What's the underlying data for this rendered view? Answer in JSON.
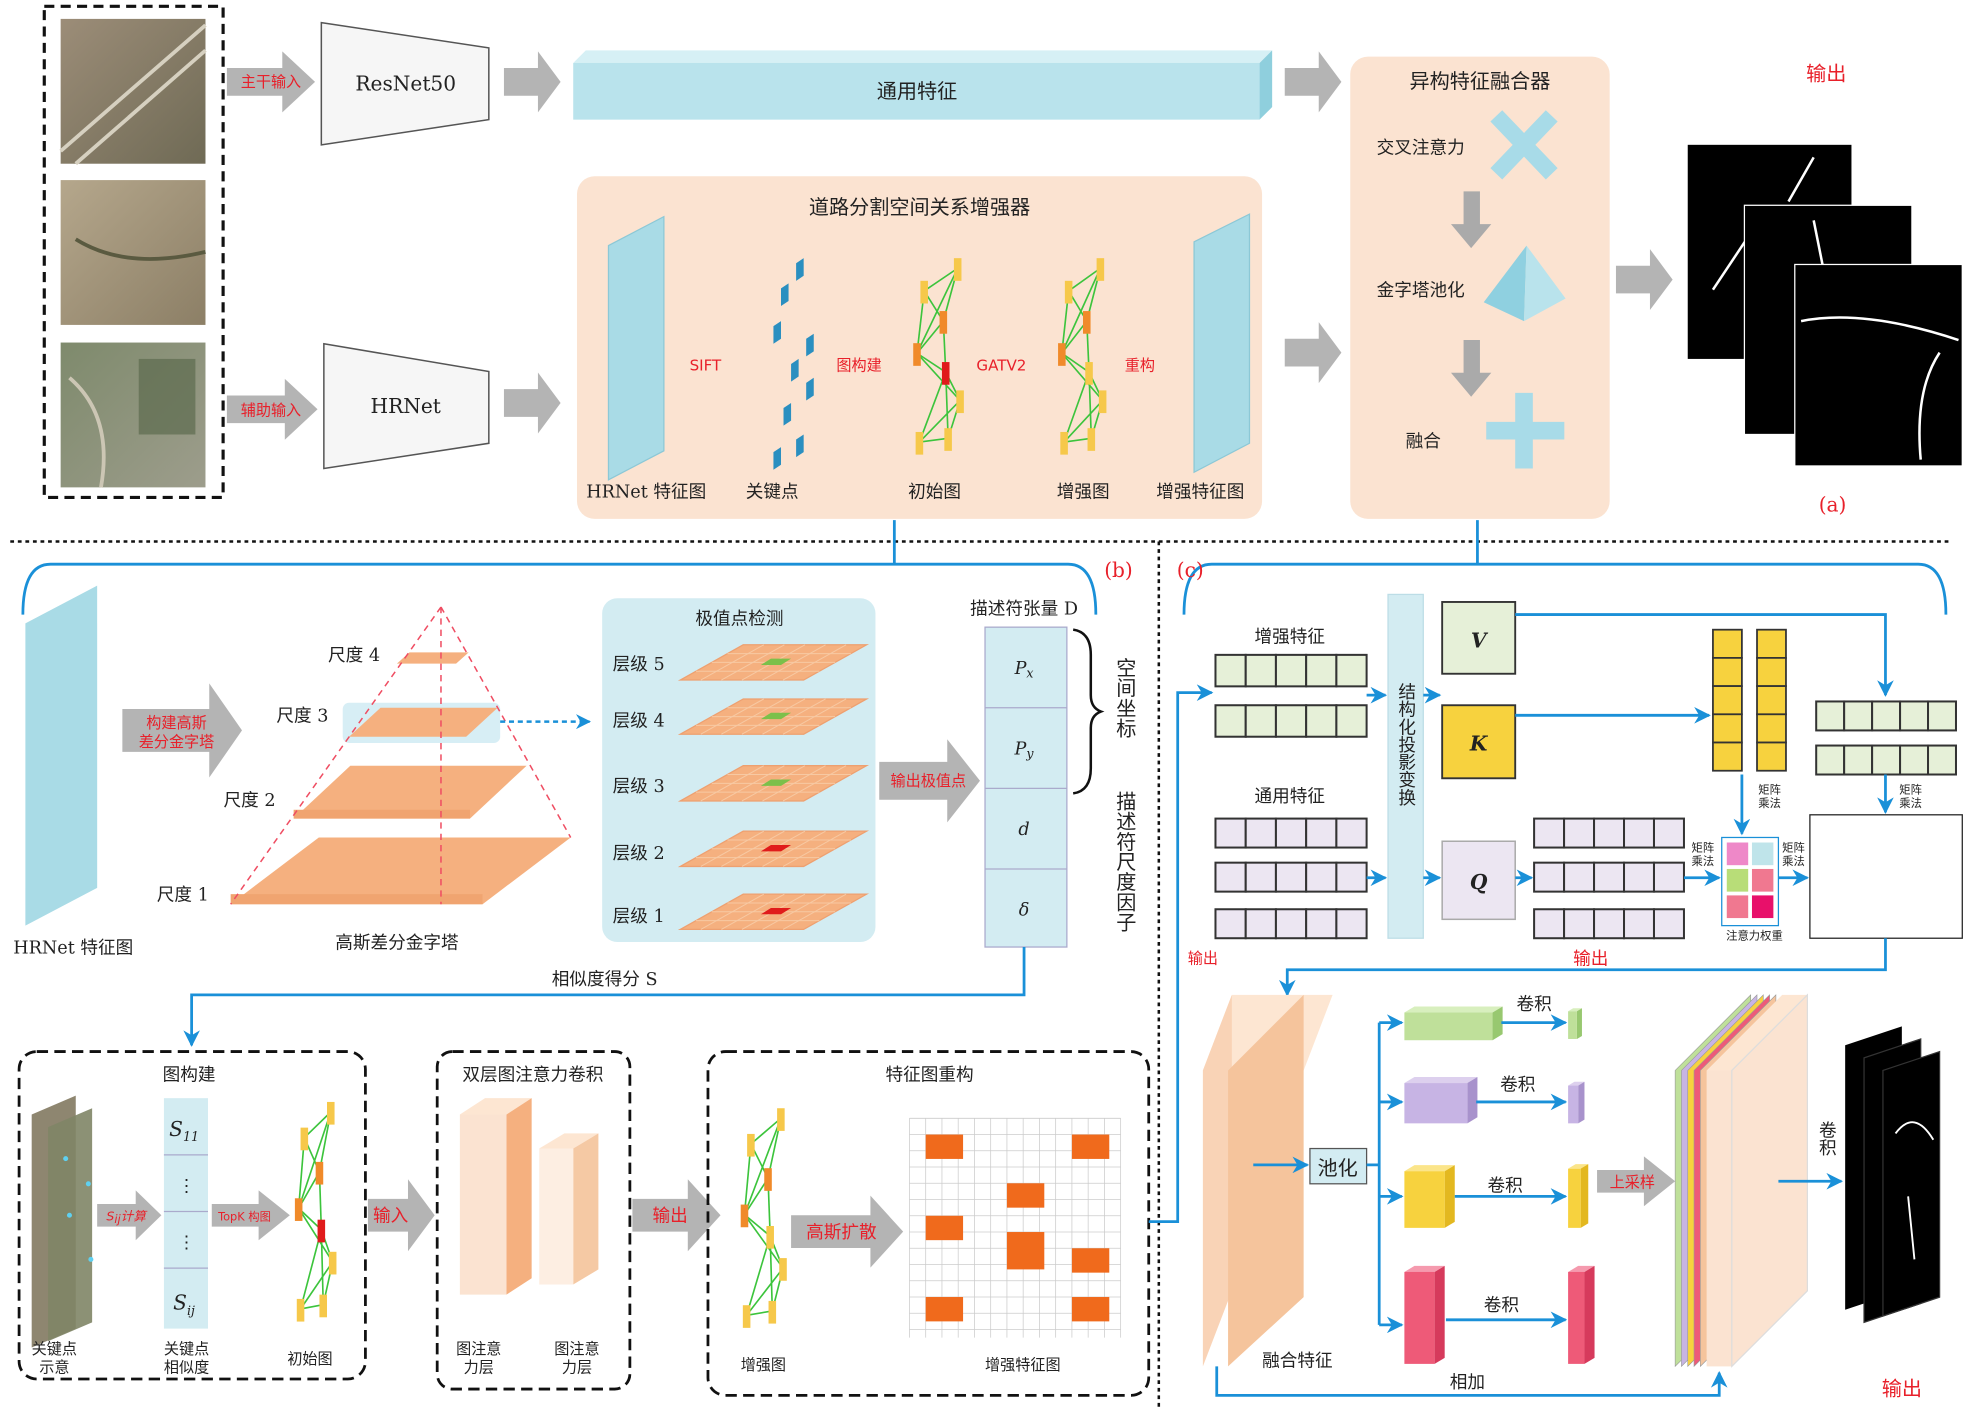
{
  "panel_a": {
    "label": "(a)",
    "input_main_label": "主干输入",
    "input_aux_label": "辅助输入",
    "resnet_label": "ResNet50",
    "hrnet_label": "HRNet",
    "general_feature_label": "通用特征",
    "enhancer": {
      "title": "道路分割空间关系增强器",
      "steps": [
        "HRNet 特征图",
        "关键点",
        "初始图",
        "增强图",
        "增强特征图"
      ],
      "arrows": [
        "SIFT",
        "图构建",
        "GATV2",
        "重构"
      ]
    },
    "fusion": {
      "title": "异构特征融合器",
      "items": [
        "交叉注意力",
        "金字塔池化",
        "融合"
      ]
    },
    "output_label": "输出"
  },
  "panel_b": {
    "label": "(b)",
    "hrnet_map_label": "HRNet 特征图",
    "build_arrow_lines": [
      "构建高斯",
      "差分金字塔"
    ],
    "scales": [
      "尺度 4",
      "尺度 3",
      "尺度 2",
      "尺度 1"
    ],
    "pyramid_caption": "高斯差分金字塔",
    "extrema": {
      "title": "极值点检测",
      "levels": [
        "层级 5",
        "层级 4",
        "层级 3",
        "层级 2",
        "层级 1"
      ]
    },
    "output_extrema_label": "输出极值点",
    "descriptor": {
      "title": "描述符张量 D",
      "cells": [
        {
          "base": "P",
          "sub": "x"
        },
        {
          "base": "P",
          "sub": "y"
        },
        {
          "base": "d",
          "sub": ""
        },
        {
          "base": "δ",
          "sub": ""
        }
      ],
      "spatial_label": "空间坐标",
      "scale_label": "描述符尺度因子"
    },
    "similarity_label": "相似度得分 S",
    "graph_build": {
      "title": "图构建",
      "sij_arrow": {
        "base": "S",
        "sub": "ij",
        "suffix": "计算"
      },
      "topk_arrow": "TopK 构图",
      "cells": [
        {
          "base": "S",
          "sub": "11"
        },
        {
          "base": "⋮",
          "sub": ""
        },
        {
          "base": "⋮",
          "sub": ""
        },
        {
          "base": "S",
          "sub": "ij"
        }
      ],
      "keypoint_label_lines": [
        "关键点",
        "示意"
      ],
      "similarity_label_lines": [
        "关键点",
        "相似度"
      ],
      "initial_graph_label": "初始图",
      "input_arrow": "输入"
    },
    "gat": {
      "title": "双层图注意力卷积",
      "layer_label_lines": [
        "图注意",
        "力层"
      ],
      "output_arrow": "输出"
    },
    "reconstruct": {
      "title": "特征图重构",
      "diffusion_arrow": "高斯扩散",
      "enhanced_graph_label": "增强图",
      "enhanced_map_label": "增强特征图"
    }
  },
  "panel_c": {
    "label": "(c)",
    "enhanced_feature_label": "增强特征",
    "general_feature_label": "通用特征",
    "projection_label": "结构化投影变换",
    "v": "V",
    "k": "K",
    "q": "Q",
    "matmul_label_lines": [
      "矩阵",
      "乘法"
    ],
    "attention_weight_label": "注意力权重",
    "output_left": "输出",
    "output_mid": "输出",
    "fused_feature_label": "融合特征",
    "pool_label": "池化",
    "conv_label": "卷积",
    "upsample_label": "上采样",
    "add_label": "相加",
    "final_conv_label": "卷积",
    "final_output_label": "输出"
  },
  "colors": {
    "accent_blue": "#1a90d8",
    "label_red": "#e8202a",
    "peach": "#fbe3d1",
    "light_blue": "#b9e3ec",
    "orange": "#f5b07f"
  }
}
